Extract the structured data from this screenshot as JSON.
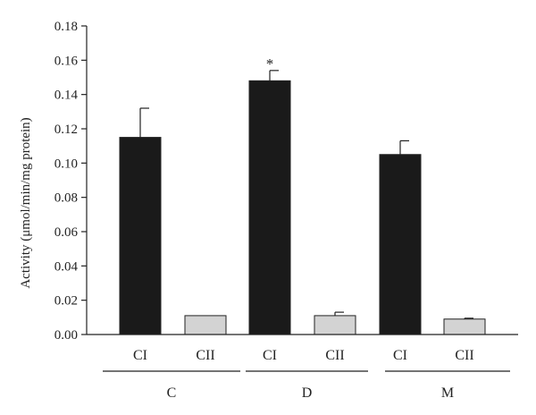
{
  "chart_data": {
    "type": "bar",
    "title": "",
    "ylabel": "Activity (μmol/min/mg protein)",
    "ylim": [
      0,
      0.18
    ],
    "yticks": [
      "0.00",
      "0.02",
      "0.04",
      "0.06",
      "0.08",
      "0.10",
      "0.12",
      "0.14",
      "0.16",
      "0.18"
    ],
    "groups": [
      {
        "label": "C",
        "bars": [
          {
            "label": "CI",
            "value": 0.115,
            "error": 0.017,
            "color": "#1a1a1a",
            "annotation": ""
          },
          {
            "label": "CII",
            "value": 0.011,
            "error": 0.0,
            "color": "#d3d3d3",
            "annotation": ""
          }
        ]
      },
      {
        "label": "D",
        "bars": [
          {
            "label": "CI",
            "value": 0.148,
            "error": 0.006,
            "color": "#1a1a1a",
            "annotation": "*"
          },
          {
            "label": "CII",
            "value": 0.011,
            "error": 0.002,
            "color": "#d3d3d3",
            "annotation": ""
          }
        ]
      },
      {
        "label": "M",
        "bars": [
          {
            "label": "CI",
            "value": 0.105,
            "error": 0.008,
            "color": "#1a1a1a",
            "annotation": ""
          },
          {
            "label": "CII",
            "value": 0.009,
            "error": 0.0005,
            "color": "#d3d3d3",
            "annotation": ""
          }
        ]
      }
    ],
    "grid": false,
    "legend": "none"
  }
}
